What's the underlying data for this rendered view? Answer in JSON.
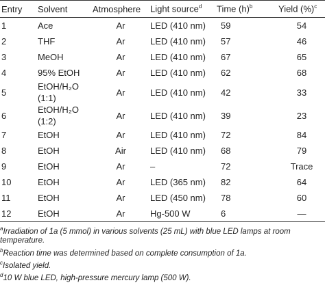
{
  "table": {
    "header": [
      {
        "text": "Entry"
      },
      {
        "text": "Solvent"
      },
      {
        "text": "Atmosphere"
      },
      {
        "text": "Light source",
        "note": "d"
      },
      {
        "text": "Time (h)",
        "note": "b"
      },
      {
        "text": "Yield (%)",
        "note": "c"
      }
    ],
    "rows": [
      [
        1,
        "Ace",
        "Ar",
        "LED (410 nm)",
        59,
        54
      ],
      [
        2,
        "THF",
        "Ar",
        "LED (410 nm)",
        57,
        46
      ],
      [
        3,
        "MeOH",
        "Ar",
        "LED (410 nm)",
        67,
        65
      ],
      [
        4,
        "95% EtOH",
        "Ar",
        "LED (410 nm)",
        62,
        68
      ],
      [
        5,
        "EtOH/H₂O\n(1:1)",
        "Ar",
        "LED (410 nm)",
        42,
        33
      ],
      [
        6,
        "EtOH/H₂O\n(1:2)",
        "Ar",
        "LED (410 nm)",
        39,
        23
      ],
      [
        7,
        "EtOH",
        "Ar",
        "LED (410 nm)",
        72,
        84
      ],
      [
        8,
        "EtOH",
        "Air",
        "LED (410 nm)",
        68,
        79
      ],
      [
        9,
        "EtOH",
        "Ar",
        "–",
        72,
        "Trace"
      ],
      [
        10,
        "EtOH",
        "Ar",
        "LED (365 nm)",
        82,
        64
      ],
      [
        11,
        "EtOH",
        "Ar",
        "LED (450 nm)",
        78,
        60
      ],
      [
        12,
        "EtOH",
        "Ar",
        "Hg-500 W",
        6,
        "—"
      ]
    ]
  },
  "footnotes": [
    {
      "mark": "a",
      "text": "Irradiation of 1a (5 mmol) in various solvents (25 mL) with blue LED lamps at room temperature."
    },
    {
      "mark": "b",
      "text": "Reaction time was determined based on complete consumption of 1a."
    },
    {
      "mark": "c",
      "text": "Isolated yield."
    },
    {
      "mark": "d",
      "text": "10 W blue LED, high-pressure mercury lamp (500 W)."
    }
  ]
}
